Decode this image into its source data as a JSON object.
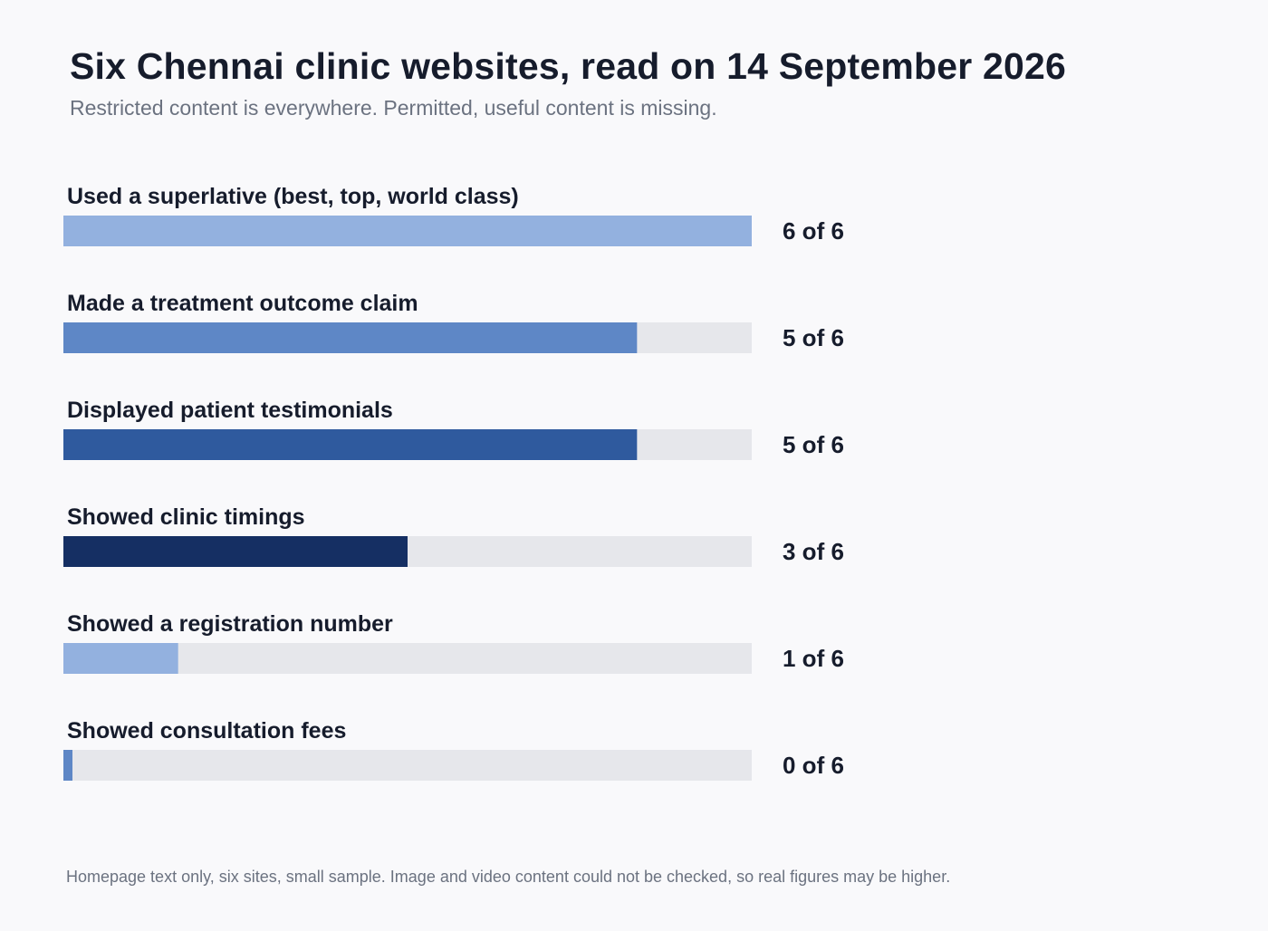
{
  "title": "Six Chennai clinic websites, read on 14 September 2026",
  "subtitle": "Restricted content is everywhere. Permitted, useful content is missing.",
  "footnote": "Homepage text only, six sites, small sample. Image and video content could not be checked, so real figures may be higher.",
  "colors": {
    "track": "#e6e7eb",
    "text": "#161c2c",
    "muted": "#6b7280",
    "background": "#f9f9fb"
  },
  "chart_data": {
    "type": "bar",
    "orientation": "horizontal",
    "xlim": [
      0,
      6
    ],
    "grid": false,
    "legend": "none",
    "categories": [
      "Used a superlative (best, top, world class)",
      "Made a treatment outcome claim",
      "Displayed patient testimonials",
      "Showed clinic timings",
      "Showed a registration number",
      "Showed consultation fees"
    ],
    "values": [
      6,
      5,
      5,
      3,
      1,
      0
    ],
    "total": 6,
    "value_labels": [
      "6 of 6",
      "5 of 6",
      "5 of 6",
      "3 of 6",
      "1 of 6",
      "0 of 6"
    ],
    "bar_colors": [
      "#93b1df",
      "#5e87c6",
      "#2f5a9e",
      "#152f63",
      "#93b1df",
      "#5e87c6"
    ]
  }
}
